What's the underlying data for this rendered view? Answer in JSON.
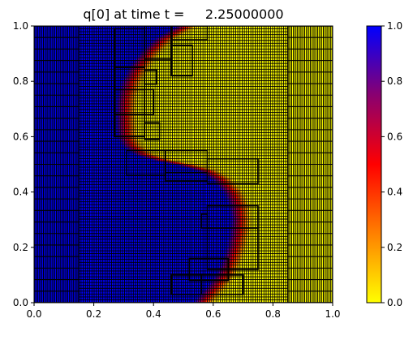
{
  "chart_data": {
    "type": "heatmap",
    "title": "q[0] at time t =     2.25000000",
    "x_ticks": [
      "0.0",
      "0.2",
      "0.4",
      "0.6",
      "0.8",
      "1.0"
    ],
    "y_ticks": [
      "0.0",
      "0.2",
      "0.4",
      "0.6",
      "0.8",
      "1.0"
    ],
    "xlim": [
      0,
      1
    ],
    "ylim": [
      0,
      1
    ],
    "colorbar": {
      "ticks": [
        "0.0",
        "0.2",
        "0.4",
        "0.6",
        "0.8",
        "1.0"
      ],
      "range": [
        0,
        1
      ],
      "colors": [
        "#ffff00",
        "#ff8000",
        "#ff0000",
        "#8a0070",
        "#0000ff"
      ]
    },
    "field": {
      "description_of_values": "q = 1 (blue) left of interface curve, q = 0 (yellow) right of it",
      "interface_x_at_y": [
        [
          0.0,
          0.57
        ],
        [
          0.05,
          0.61
        ],
        [
          0.1,
          0.645
        ],
        [
          0.15,
          0.665
        ],
        [
          0.2,
          0.68
        ],
        [
          0.25,
          0.69
        ],
        [
          0.3,
          0.695
        ],
        [
          0.35,
          0.69
        ],
        [
          0.4,
          0.67
        ],
        [
          0.45,
          0.63
        ],
        [
          0.48,
          0.585
        ],
        [
          0.5,
          0.52
        ],
        [
          0.52,
          0.43
        ],
        [
          0.54,
          0.37
        ],
        [
          0.57,
          0.33
        ],
        [
          0.6,
          0.315
        ],
        [
          0.65,
          0.31
        ],
        [
          0.7,
          0.31
        ],
        [
          0.75,
          0.315
        ],
        [
          0.8,
          0.33
        ],
        [
          0.85,
          0.355
        ],
        [
          0.9,
          0.39
        ],
        [
          0.95,
          0.44
        ],
        [
          1.0,
          0.52
        ]
      ]
    },
    "amr_patches": [
      [
        0.0,
        0.0,
        0.15,
        1.0,
        24
      ],
      [
        0.85,
        0.0,
        1.0,
        1.0,
        24
      ],
      [
        0.15,
        0.0,
        0.85,
        1.0,
        96
      ],
      [
        0.27,
        0.85,
        0.37,
        0.99,
        1
      ],
      [
        0.37,
        0.88,
        0.46,
        1.0,
        1
      ],
      [
        0.46,
        0.95,
        0.58,
        1.0,
        1
      ],
      [
        0.46,
        0.82,
        0.53,
        0.93,
        1
      ],
      [
        0.27,
        0.77,
        0.37,
        0.85,
        1
      ],
      [
        0.37,
        0.79,
        0.41,
        0.84,
        1
      ],
      [
        0.27,
        0.68,
        0.37,
        0.77,
        1
      ],
      [
        0.37,
        0.68,
        0.4,
        0.77,
        1
      ],
      [
        0.27,
        0.6,
        0.37,
        0.68,
        1
      ],
      [
        0.37,
        0.59,
        0.42,
        0.65,
        1
      ],
      [
        0.31,
        0.46,
        0.44,
        0.55,
        1
      ],
      [
        0.44,
        0.47,
        0.58,
        0.55,
        1
      ],
      [
        0.44,
        0.44,
        0.58,
        0.47,
        1
      ],
      [
        0.58,
        0.43,
        0.75,
        0.52,
        1
      ],
      [
        0.58,
        0.27,
        0.75,
        0.35,
        1
      ],
      [
        0.58,
        0.12,
        0.75,
        0.27,
        1
      ],
      [
        0.56,
        0.27,
        0.58,
        0.32,
        1
      ],
      [
        0.52,
        0.08,
        0.65,
        0.16,
        1
      ],
      [
        0.46,
        0.03,
        0.56,
        0.1,
        1
      ],
      [
        0.56,
        0.03,
        0.7,
        0.1,
        1
      ]
    ]
  }
}
